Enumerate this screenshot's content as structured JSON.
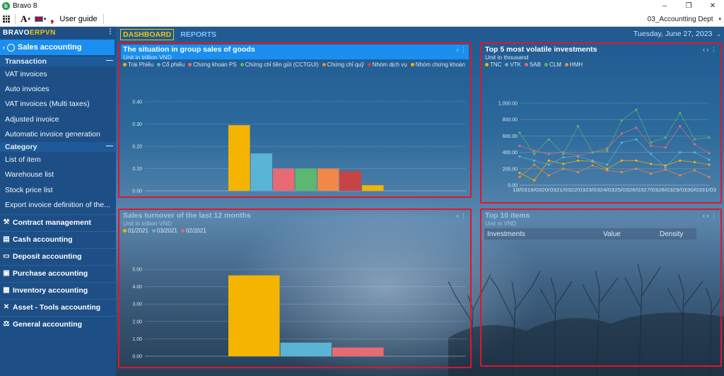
{
  "window": {
    "app_title": "Bravo 8"
  },
  "toolbar": {
    "font_label": "A",
    "user_guide_label": "User guide",
    "department": "03_Accountting Dept"
  },
  "sidebar": {
    "brand": {
      "part1": "BRAVO ",
      "part2": "ERPVN"
    },
    "active_module": "Sales accounting",
    "groups": [
      {
        "title": "Transaction",
        "items": [
          "VAT invoices",
          "Auto invoices",
          "VAT invoices (Multi taxes)",
          "Adjusted invoice",
          "Automatic invoice generation"
        ]
      },
      {
        "title": "Category",
        "items": [
          "List of item",
          "Warehouse list",
          "Stock price list",
          "Export invoice definition of the..."
        ]
      }
    ],
    "modules": [
      "Contract management",
      "Cash accounting",
      "Deposit accounting",
      "Purchase accounting",
      "Inventory accounting",
      "Asset - Tools accounting",
      "General accounting"
    ]
  },
  "tabs": {
    "dashboard": "DASHBOARD",
    "reports": "REPORTS"
  },
  "date_label": "Tuesday, June 27, 2023",
  "panels": {
    "group_sales": {
      "title": "The situation in group sales of goods",
      "subtitle": "Unit in trillion VND"
    },
    "volatile": {
      "title": "Top 5 most volatile investments",
      "subtitle": "Unit in thousand"
    },
    "turnover": {
      "title": "Sales turnover of the last 12 months",
      "subtitle": "Unit in trillion VND"
    },
    "top_items": {
      "title": "Top 10 items",
      "subtitle": "Unit in  VND",
      "columns": [
        "Investments",
        "Value",
        "Density"
      ]
    }
  },
  "colors": {
    "sidebar": "#1d4f86",
    "active": "#1a8ff0",
    "accent": "#f7c300",
    "panel_border": "#e0152d"
  },
  "chart_data": [
    {
      "type": "bar",
      "title": "The situation in group sales of goods",
      "subtitle": "Unit in trillion VND",
      "series": [
        {
          "name": "Trái Phiếu",
          "value": 0.295,
          "color": "#f5b400"
        },
        {
          "name": "Cổ phiếu",
          "value": 0.168,
          "color": "#5ab4d4"
        },
        {
          "name": "Chứng khoán PS",
          "value": 0.1,
          "color": "#e86a74"
        },
        {
          "name": "Chứng chỉ tiền gửi (CCTGUI)",
          "value": 0.1,
          "color": "#5cb870"
        },
        {
          "name": "Chứng chỉ quỹ",
          "value": 0.1,
          "color": "#f0884a"
        },
        {
          "name": "Nhóm dịch vụ",
          "value": 0.088,
          "color": "#c84444"
        },
        {
          "name": "Nhóm chứng khoán",
          "value": 0.025,
          "color": "#f5b400"
        }
      ],
      "y_ticks": [
        "0.00",
        "0.10",
        "0.20",
        "0.30",
        "0.40"
      ],
      "ylim": [
        0,
        0.4
      ]
    },
    {
      "type": "line",
      "title": "Top 5 most volatile investments",
      "subtitle": "Unit in thousand",
      "x": [
        "18/03",
        "19/03",
        "20/03",
        "21/03",
        "22/03",
        "23/03",
        "24/03",
        "25/03",
        "26/03",
        "27/03",
        "28/03",
        "29/03",
        "30/03",
        "31/03"
      ],
      "x_tick_text": "18/0319/0320/0321/0322/0323/0324/0325/0326/0327/0328/0329/0330/0331/03",
      "y_ticks": [
        "0.00",
        "200.00",
        "400.00",
        "600.00",
        "800.00",
        "1,000.00"
      ],
      "ylim": [
        0,
        1000
      ],
      "series": [
        {
          "name": "TNC",
          "color": "#f5b400",
          "values": [
            150,
            60,
            300,
            260,
            300,
            290,
            200,
            300,
            300,
            260,
            240,
            300,
            280,
            250
          ]
        },
        {
          "name": "VTK",
          "color": "#5ab4d4",
          "values": [
            350,
            300,
            250,
            340,
            350,
            300,
            250,
            520,
            560,
            380,
            220,
            400,
            400,
            310
          ]
        },
        {
          "name": "SAB",
          "color": "#e86a74",
          "values": [
            480,
            420,
            380,
            400,
            360,
            400,
            450,
            630,
            700,
            480,
            460,
            720,
            500,
            390
          ]
        },
        {
          "name": "CLM",
          "color": "#5cb870",
          "values": [
            640,
            380,
            560,
            380,
            720,
            400,
            420,
            790,
            920,
            520,
            580,
            880,
            560,
            580
          ]
        },
        {
          "name": "HMH",
          "color": "#f0884a",
          "values": [
            100,
            250,
            120,
            200,
            160,
            240,
            180,
            160,
            200,
            140,
            190,
            120,
            180,
            100
          ]
        }
      ]
    },
    {
      "type": "bar",
      "title": "Sales turnover of the last 12 months",
      "subtitle": "Unit in trillion VND",
      "series": [
        {
          "name": "01/2021",
          "value": 4.65,
          "color": "#f5b400"
        },
        {
          "name": "03/2021",
          "value": 0.78,
          "color": "#5ab4d4"
        },
        {
          "name": "02/2021",
          "value": 0.5,
          "color": "#e86a74"
        }
      ],
      "y_ticks": [
        "0.00",
        "1.00",
        "2.00",
        "3.00",
        "4.00",
        "5.00"
      ],
      "ylim": [
        0,
        5
      ]
    }
  ]
}
